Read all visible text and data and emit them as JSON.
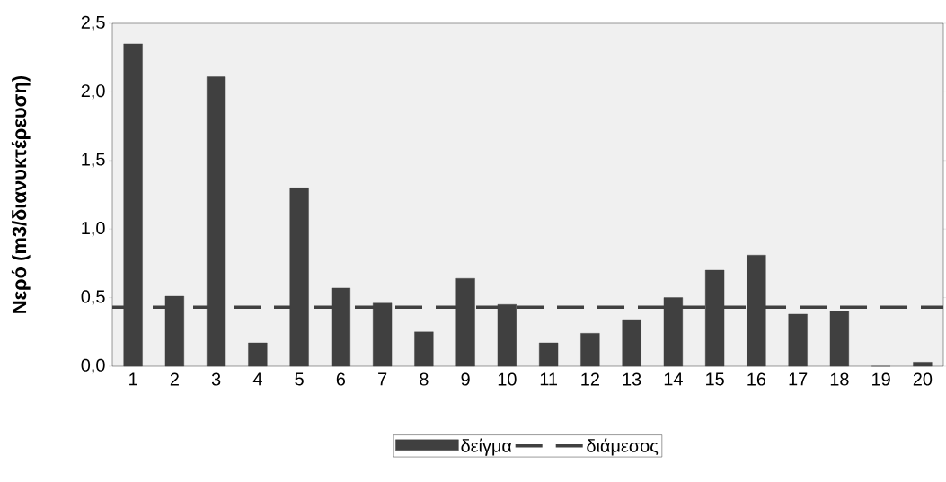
{
  "chart_data": {
    "type": "bar",
    "ylabel": "Νερό (m3/διανυκτέρευση)",
    "categories": [
      "1",
      "2",
      "3",
      "4",
      "5",
      "6",
      "7",
      "8",
      "9",
      "10",
      "11",
      "12",
      "13",
      "14",
      "15",
      "16",
      "17",
      "18",
      "19",
      "20"
    ],
    "series": [
      {
        "name": "δείγμα",
        "color": "#404040",
        "values": [
          2.35,
          0.51,
          2.11,
          0.17,
          1.3,
          0.57,
          0.46,
          0.25,
          0.64,
          0.45,
          0.17,
          0.24,
          0.34,
          0.5,
          0.7,
          0.81,
          0.38,
          0.4,
          0,
          0.03
        ]
      }
    ],
    "ref_lines": [
      {
        "axis": "y",
        "value": 0.43,
        "label": "διάμεσος",
        "color": "#404040",
        "line_style": "dashed"
      }
    ],
    "ylim": [
      0,
      2.5
    ],
    "yticks": [
      {
        "value": 0,
        "label": "0,0"
      },
      {
        "value": 0.5,
        "label": "0,5"
      },
      {
        "value": 1,
        "label": "1,0"
      },
      {
        "value": 1.5,
        "label": "1,5"
      },
      {
        "value": 2,
        "label": "2,0"
      },
      {
        "value": 2.5,
        "label": "2,5"
      }
    ],
    "legend": "bottom",
    "grid": false
  }
}
